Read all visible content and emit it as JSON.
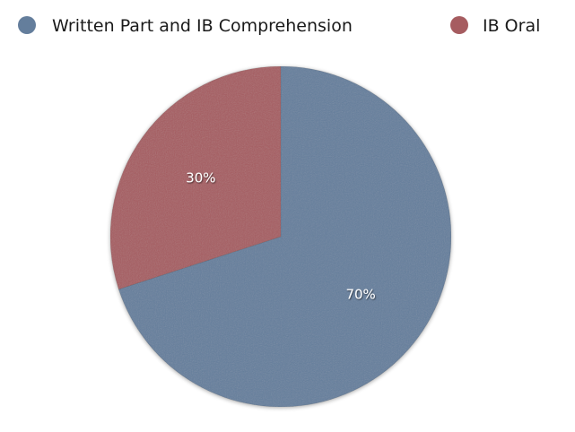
{
  "chart_data": {
    "type": "pie",
    "title": "",
    "legend_placement": "top",
    "slices": [
      {
        "name": "Written Part and IB Comprehension",
        "value": 70,
        "label": "70%",
        "color": "#647e9c"
      },
      {
        "name": "IB Oral",
        "value": 30,
        "label": "30%",
        "color": "#a65c60"
      }
    ]
  }
}
